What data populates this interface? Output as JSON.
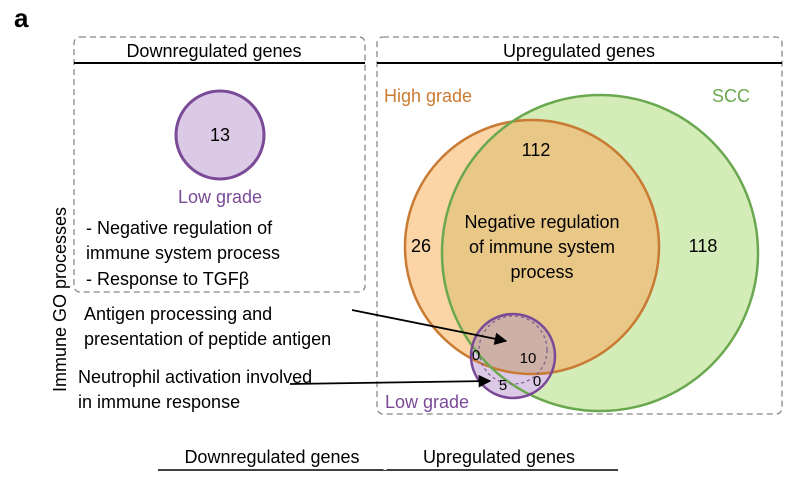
{
  "panel_label": "a",
  "y_axis_label": "Immune GO processes",
  "downregulated_box": {
    "title": "Downregulated genes",
    "circle_label": "Low grade",
    "circle_count": "13",
    "processes": [
      "- Negative regulation of",
      "immune system process",
      "- Response to TGFβ"
    ]
  },
  "upregulated_box": {
    "title": "Upregulated genes",
    "high_grade_label": "High grade",
    "scc_label": "SCC",
    "low_grade_label": "Low grade",
    "high_only_count": "26",
    "scc_only_count": "118",
    "high_scc_count": "112",
    "overlap_process": [
      "Negative regulation",
      "of immune system",
      "process"
    ],
    "low_high_count": "0",
    "low_all_count": "10",
    "low_only_count": "5",
    "low_scc_count": "0"
  },
  "annotations": {
    "antigen": [
      "Antigen processing and",
      "presentation of peptide antigen"
    ],
    "neutrophil": [
      "Neutrophil activation involved",
      "in immune response"
    ]
  },
  "bottom_labels": {
    "down": "Downregulated genes",
    "up": "Upregulated genes"
  },
  "colors": {
    "high_grade_stroke": "#c97a33",
    "high_grade_fill": "#fbd5a6",
    "scc_stroke": "#6aa84f",
    "scc_fill": "#d3ecb8",
    "overlap_fill": "#e9c887",
    "low_grade_stroke": "#7a4a97",
    "low_grade_fill": "#dbc9e6",
    "low_overlap_fill": "#cdb0a6"
  }
}
